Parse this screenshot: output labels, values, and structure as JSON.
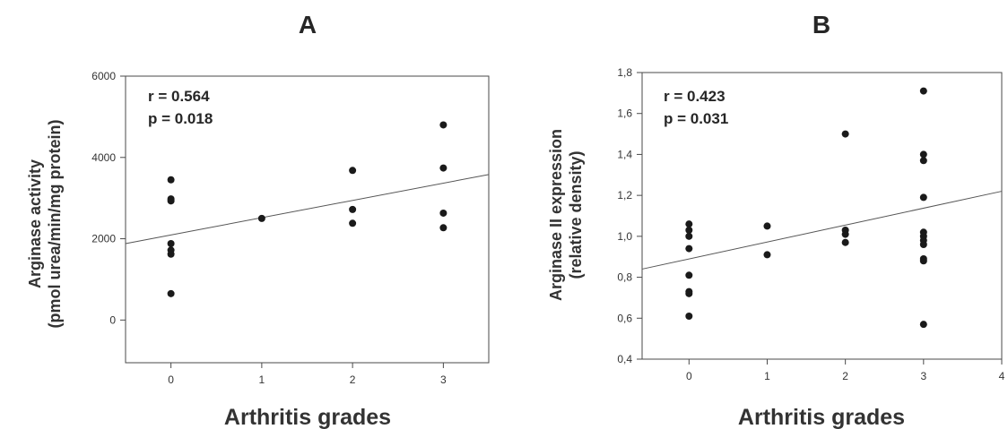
{
  "chart_data": [
    {
      "type": "scatter",
      "panel": "A",
      "xlabel": "Arthritis grades",
      "ylabel_lines": [
        "Arginase activity",
        "(pmol urea/min/mg protein)"
      ],
      "xticks": [
        "0",
        "1",
        "2",
        "3"
      ],
      "xtick_values": [
        0,
        1,
        2,
        3
      ],
      "yticks": [
        "0",
        "2000",
        "4000",
        "6000"
      ],
      "ytick_values": [
        0,
        2000,
        4000,
        6000
      ],
      "xlim": [
        -0.5,
        3.5
      ],
      "ylim": [
        -1050,
        6000
      ],
      "stats": [
        "r = 0.564",
        "p = 0.018"
      ],
      "series": [
        {
          "points": [
            {
              "x": 0,
              "y": 3450
            },
            {
              "x": 0,
              "y": 2980
            },
            {
              "x": 0,
              "y": 2930
            },
            {
              "x": 0,
              "y": 1880
            },
            {
              "x": 0,
              "y": 1720
            },
            {
              "x": 0,
              "y": 1620
            },
            {
              "x": 0,
              "y": 650
            },
            {
              "x": 1,
              "y": 2500
            },
            {
              "x": 2,
              "y": 3680
            },
            {
              "x": 2,
              "y": 2720
            },
            {
              "x": 2,
              "y": 2380
            },
            {
              "x": 3,
              "y": 4800
            },
            {
              "x": 3,
              "y": 3740
            },
            {
              "x": 3,
              "y": 2630
            },
            {
              "x": 3,
              "y": 2270
            }
          ]
        }
      ],
      "regression": {
        "x": [
          -0.5,
          3.5
        ],
        "y": [
          1880,
          3580
        ]
      },
      "grid": false
    },
    {
      "type": "scatter",
      "panel": "B",
      "xlabel": "Arthritis grades",
      "ylabel_lines": [
        "Arginase II expression",
        "(relative density)"
      ],
      "xticks": [
        "0",
        "1",
        "2",
        "3",
        "4"
      ],
      "xtick_values": [
        0,
        1,
        2,
        3,
        4
      ],
      "yticks": [
        "0,4",
        "0,6",
        "0,8",
        "1,0",
        "1,2",
        "1,4",
        "1,6",
        "1,8"
      ],
      "ytick_values": [
        0.4,
        0.6,
        0.8,
        1.0,
        1.2,
        1.4,
        1.6,
        1.8
      ],
      "xlim": [
        -0.6,
        4
      ],
      "ylim": [
        0.4,
        1.8
      ],
      "stats": [
        "r = 0.423",
        "p = 0.031"
      ],
      "series": [
        {
          "points": [
            {
              "x": 0,
              "y": 1.06
            },
            {
              "x": 0,
              "y": 1.03
            },
            {
              "x": 0,
              "y": 1.0
            },
            {
              "x": 0,
              "y": 0.94
            },
            {
              "x": 0,
              "y": 0.81
            },
            {
              "x": 0,
              "y": 0.73
            },
            {
              "x": 0,
              "y": 0.72
            },
            {
              "x": 0,
              "y": 0.61
            },
            {
              "x": 1,
              "y": 1.05
            },
            {
              "x": 1,
              "y": 0.91
            },
            {
              "x": 2,
              "y": 1.5
            },
            {
              "x": 2,
              "y": 1.03
            },
            {
              "x": 2,
              "y": 1.01
            },
            {
              "x": 2,
              "y": 0.97
            },
            {
              "x": 3,
              "y": 1.71
            },
            {
              "x": 3,
              "y": 1.4
            },
            {
              "x": 3,
              "y": 1.37
            },
            {
              "x": 3,
              "y": 1.19
            },
            {
              "x": 3,
              "y": 1.02
            },
            {
              "x": 3,
              "y": 1.0
            },
            {
              "x": 3,
              "y": 0.98
            },
            {
              "x": 3,
              "y": 0.96
            },
            {
              "x": 3,
              "y": 0.89
            },
            {
              "x": 3,
              "y": 0.88
            },
            {
              "x": 3,
              "y": 0.57
            }
          ]
        }
      ],
      "regression": {
        "x": [
          -0.6,
          4
        ],
        "y": [
          0.84,
          1.22
        ]
      },
      "grid": false
    }
  ]
}
